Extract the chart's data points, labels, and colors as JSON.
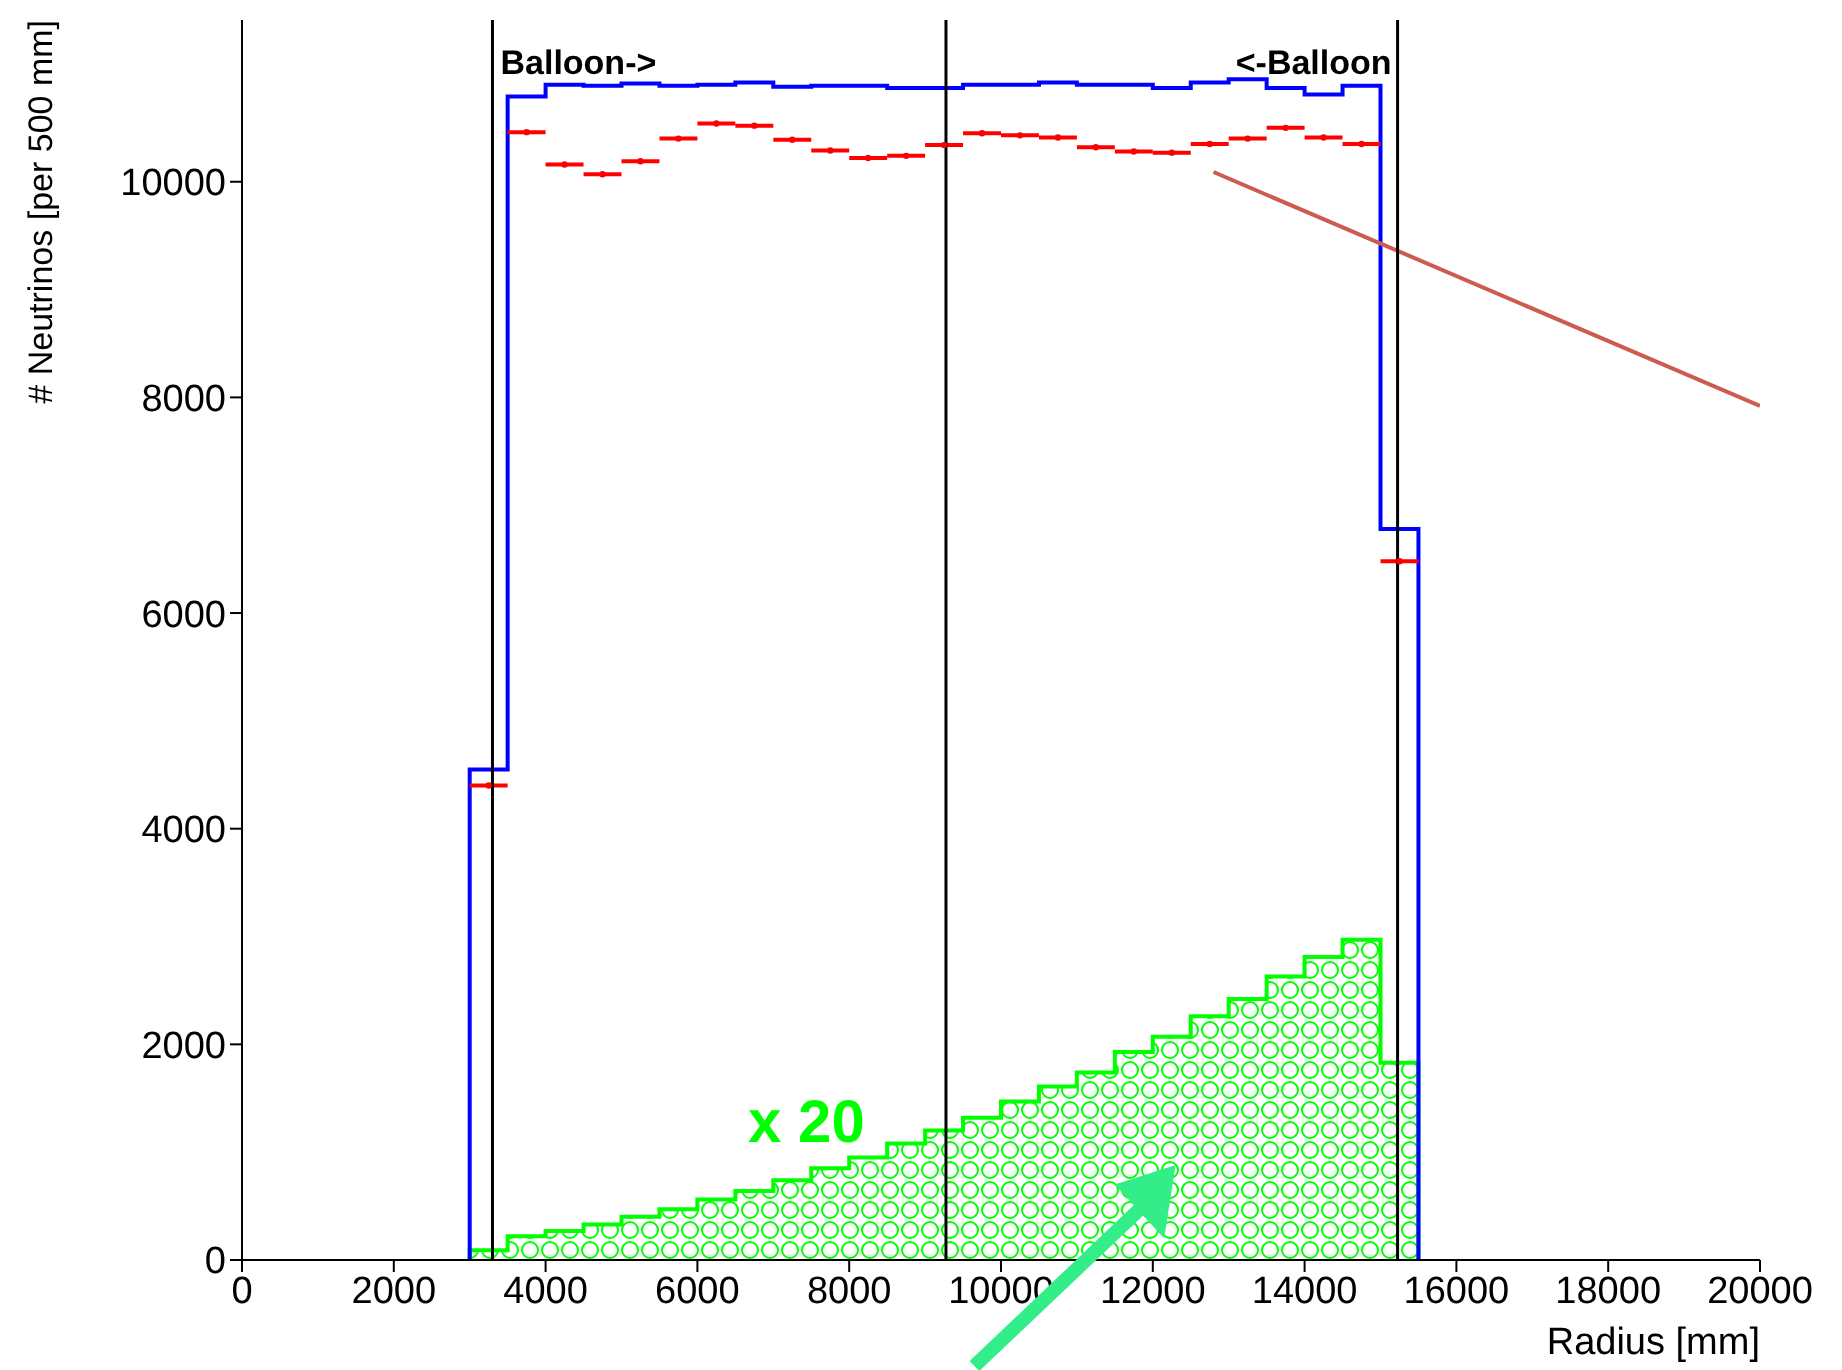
{
  "chart_data": {
    "type": "histogram",
    "xlabel": "Radius [mm]",
    "ylabel": "# Neutrinos [per 500 mm]",
    "bins": [
      3000,
      3500,
      4000,
      4500,
      5000,
      5500,
      6000,
      6500,
      7000,
      7500,
      8000,
      8500,
      9000,
      9500,
      10000,
      10500,
      11000,
      11500,
      12000,
      12500,
      13000,
      13500,
      14000,
      14500,
      15000,
      15500
    ],
    "xlim": [
      0,
      20000
    ],
    "xticks": [
      0,
      2000,
      4000,
      6000,
      8000,
      10000,
      12000,
      14000,
      16000,
      18000,
      20000
    ],
    "ylim": [
      0,
      11500
    ],
    "yticks": [
      0,
      2000,
      4000,
      6000,
      8000,
      10000
    ],
    "series": [
      {
        "color": "#0000ff",
        "values": [
          4550,
          10790,
          10900,
          10890,
          10910,
          10890,
          10900,
          10920,
          10880,
          10890,
          10890,
          10870,
          10870,
          10900,
          10900,
          10920,
          10900,
          10900,
          10870,
          10920,
          10950,
          10870,
          10810,
          10890,
          6780
        ]
      },
      {
        "type": "scatter",
        "color": "#ff0000",
        "marker": "circle",
        "x": [
          3250,
          3750,
          4250,
          4750,
          5250,
          5750,
          6250,
          6750,
          7250,
          7750,
          8250,
          8750,
          9250,
          9750,
          10250,
          10750,
          11250,
          11750,
          12250,
          12750,
          13250,
          13750,
          14250,
          14750,
          15250
        ],
        "values": [
          4400,
          10460,
          10160,
          10070,
          10190,
          10400,
          10540,
          10520,
          10390,
          10290,
          10220,
          10240,
          10340,
          10450,
          10430,
          10410,
          10320,
          10280,
          10270,
          10350,
          10400,
          10500,
          10410,
          10350,
          6480
        ],
        "xerrors": [
          250,
          250,
          250,
          250,
          250,
          250,
          250,
          250,
          250,
          250,
          250,
          250,
          250,
          250,
          250,
          250,
          250,
          250,
          250,
          250,
          250,
          250,
          250,
          250,
          250
        ]
      },
      {
        "type": "line",
        "color": "#cd5c50",
        "x": [
          12800,
          20000
        ],
        "values": [
          10090,
          7920
        ]
      },
      {
        "color": "#00ff00",
        "values": [
          90,
          220,
          270,
          330,
          400,
          470,
          560,
          640,
          740,
          850,
          950,
          1080,
          1200,
          1320,
          1470,
          1610,
          1740,
          1930,
          2070,
          2260,
          2420,
          2630,
          2810,
          2970,
          1830
        ]
      }
    ],
    "ref_lines": [
      {
        "axis": "x",
        "value": 3300,
        "color": "#000000"
      },
      {
        "axis": "x",
        "value": 9275,
        "color": "#000000"
      },
      {
        "axis": "x",
        "value": 15225,
        "color": "#000000"
      }
    ],
    "annotations": [
      {
        "text": "Balloon->",
        "x": 3300,
        "y": 11000
      },
      {
        "text": "<-Balloon",
        "x": 15225,
        "y": 11000
      },
      "x 20"
    ],
    "grid": false,
    "legend": false
  }
}
